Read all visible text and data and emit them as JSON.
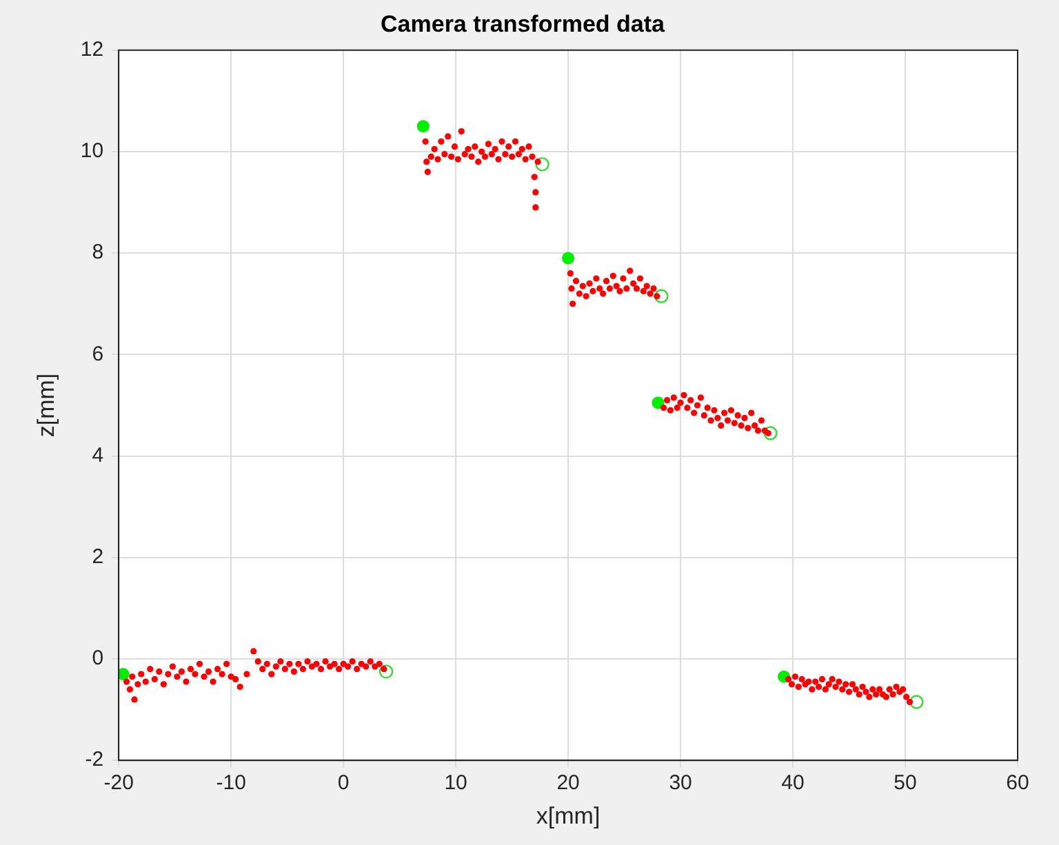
{
  "chart_data": {
    "type": "scatter",
    "title": "Camera transformed data",
    "xlabel": "x[mm]",
    "ylabel": "z[mm]",
    "xlim": [
      -20,
      60
    ],
    "xticks": [
      -20,
      -10,
      0,
      10,
      20,
      30,
      40,
      50,
      60
    ],
    "ylim": [
      -2,
      12
    ],
    "yticks": [
      -2,
      0,
      2,
      4,
      6,
      8,
      10,
      12
    ],
    "grid": true,
    "legend": false,
    "marker": "circle",
    "series": [
      {
        "color": "#ff0000",
        "x": [
          -19.3,
          -19,
          -18.8,
          -18.6,
          -18.3,
          -18,
          -17.6,
          -17.2,
          -16.8,
          -16.4,
          -16,
          -15.6,
          -15.2,
          -14.8,
          -14.4,
          -14,
          -13.6,
          -13.2,
          -12.8,
          -12.4,
          -12,
          -11.6,
          -11.2,
          -10.8,
          -10.4,
          -10,
          -9.6,
          -9.2,
          -8.6,
          -8,
          -7.6,
          -7.2,
          -6.8,
          -6.4,
          -6,
          -5.6,
          -5.2,
          -4.8,
          -4.4,
          -4,
          -3.6,
          -3.2,
          -2.8,
          -2.4,
          -2,
          -1.6,
          -1.2,
          -0.8,
          -0.4,
          0,
          0.4,
          0.8,
          1.2,
          1.6,
          2,
          2.4,
          2.8,
          3.2,
          3.6,
          7.3,
          7.4,
          7.5,
          7.8,
          8.1,
          8.4,
          8.7,
          9,
          9.3,
          9.6,
          9.9,
          10.2,
          10.5,
          10.8,
          11.1,
          11.4,
          11.7,
          12,
          12.3,
          12.6,
          12.9,
          13.2,
          13.5,
          13.8,
          14.1,
          14.4,
          14.7,
          15,
          15.3,
          15.6,
          15.9,
          16.2,
          16.5,
          16.8,
          17,
          17.1,
          17.1,
          17.3,
          20.2,
          20.3,
          20.4,
          20.7,
          21,
          21.3,
          21.6,
          21.9,
          22.2,
          22.5,
          22.8,
          23.1,
          23.4,
          23.7,
          24,
          24.3,
          24.6,
          24.9,
          25.2,
          25.5,
          25.8,
          26.1,
          26.4,
          26.7,
          27,
          27.3,
          27.6,
          27.9,
          28.5,
          28.8,
          29.1,
          29.4,
          29.7,
          30,
          30.3,
          30.6,
          30.9,
          31.2,
          31.5,
          31.8,
          32.1,
          32.4,
          32.7,
          33,
          33.3,
          33.6,
          33.9,
          34.2,
          34.5,
          34.8,
          35.1,
          35.4,
          35.7,
          36,
          36.3,
          36.6,
          36.9,
          37.2,
          37.5,
          37.8,
          39.6,
          39.9,
          40.2,
          40.5,
          40.8,
          41.1,
          41.4,
          41.7,
          42,
          42.3,
          42.6,
          42.9,
          43.2,
          43.5,
          43.8,
          44.1,
          44.4,
          44.7,
          45,
          45.3,
          45.6,
          45.9,
          46.2,
          46.5,
          46.8,
          47.1,
          47.4,
          47.7,
          48,
          48.3,
          48.6,
          48.9,
          49.2,
          49.5,
          49.8,
          50.1,
          50.4
        ],
        "values": [
          -0.45,
          -0.6,
          -0.35,
          -0.8,
          -0.5,
          -0.3,
          -0.45,
          -0.2,
          -0.4,
          -0.25,
          -0.5,
          -0.3,
          -0.15,
          -0.35,
          -0.25,
          -0.45,
          -0.2,
          -0.3,
          -0.1,
          -0.35,
          -0.25,
          -0.45,
          -0.2,
          -0.3,
          -0.1,
          -0.35,
          -0.4,
          -0.55,
          -0.3,
          0.15,
          -0.05,
          -0.2,
          -0.1,
          -0.3,
          -0.15,
          -0.05,
          -0.2,
          -0.1,
          -0.25,
          -0.1,
          -0.2,
          -0.05,
          -0.15,
          -0.1,
          -0.2,
          -0.05,
          -0.15,
          -0.1,
          -0.2,
          -0.1,
          -0.15,
          -0.05,
          -0.2,
          -0.1,
          -0.15,
          -0.05,
          -0.15,
          -0.1,
          -0.2,
          10.2,
          9.8,
          9.6,
          9.9,
          10.05,
          9.85,
          10.2,
          9.95,
          10.3,
          9.9,
          10.1,
          9.85,
          10.4,
          9.95,
          10.05,
          9.9,
          10.1,
          9.8,
          10,
          9.9,
          10.15,
          9.95,
          10.05,
          9.85,
          10.2,
          9.95,
          10.1,
          9.9,
          10.2,
          9.95,
          10.05,
          9.85,
          10.1,
          9.9,
          9.5,
          9.2,
          8.9,
          9.8,
          7.6,
          7.3,
          7,
          7.45,
          7.2,
          7.35,
          7.15,
          7.4,
          7.25,
          7.5,
          7.3,
          7.2,
          7.45,
          7.3,
          7.55,
          7.35,
          7.25,
          7.5,
          7.3,
          7.65,
          7.4,
          7.3,
          7.5,
          7.25,
          7.35,
          7.2,
          7.3,
          7.15,
          4.95,
          5.1,
          4.9,
          5.15,
          4.95,
          5.05,
          5.2,
          4.95,
          5.1,
          4.85,
          5,
          5.15,
          4.8,
          4.95,
          4.7,
          4.9,
          4.75,
          4.6,
          4.85,
          4.7,
          4.9,
          4.65,
          4.8,
          4.6,
          4.75,
          4.55,
          4.85,
          4.6,
          4.5,
          4.7,
          4.5,
          4.45,
          -0.4,
          -0.5,
          -0.35,
          -0.55,
          -0.4,
          -0.5,
          -0.45,
          -0.6,
          -0.45,
          -0.55,
          -0.4,
          -0.6,
          -0.5,
          -0.4,
          -0.55,
          -0.45,
          -0.6,
          -0.5,
          -0.65,
          -0.5,
          -0.6,
          -0.7,
          -0.55,
          -0.65,
          -0.75,
          -0.6,
          -0.7,
          -0.6,
          -0.7,
          -0.75,
          -0.6,
          -0.7,
          -0.55,
          -0.65,
          -0.6,
          -0.75,
          -0.85
        ]
      },
      {
        "color": "#00ee00",
        "x": [
          -19.6,
          7.1,
          20,
          28,
          39.2
        ],
        "values": [
          -0.3,
          10.5,
          7.9,
          5.05,
          -0.35
        ]
      },
      {
        "color": "#33dd33",
        "x": [
          3.8,
          17.7,
          28.3,
          38,
          51
        ],
        "values": [
          -0.25,
          9.75,
          7.15,
          4.45,
          -0.85
        ]
      }
    ]
  }
}
